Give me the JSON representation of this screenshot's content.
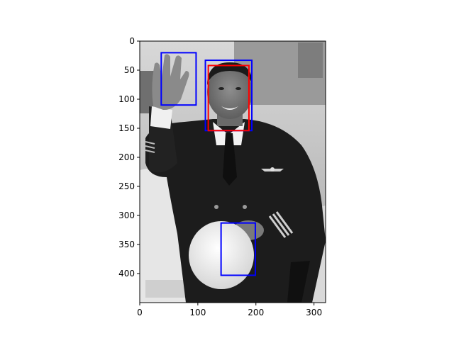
{
  "figure": {
    "image": {
      "description_free": true,
      "x_range": [
        0,
        320
      ],
      "y_range": [
        450,
        0
      ]
    },
    "x_ticks": [
      {
        "value": 0,
        "label": "0"
      },
      {
        "value": 100,
        "label": "100"
      },
      {
        "value": 200,
        "label": "200"
      },
      {
        "value": 300,
        "label": "300"
      }
    ],
    "y_ticks": [
      {
        "value": 0,
        "label": "0"
      },
      {
        "value": 50,
        "label": "50"
      },
      {
        "value": 100,
        "label": "100"
      },
      {
        "value": 150,
        "label": "150"
      },
      {
        "value": 200,
        "label": "200"
      },
      {
        "value": 250,
        "label": "250"
      },
      {
        "value": 300,
        "label": "300"
      },
      {
        "value": 350,
        "label": "350"
      },
      {
        "value": 400,
        "label": "400"
      }
    ],
    "boxes": [
      {
        "name": "detection-box-hand",
        "color": "#0000ff",
        "x": [
          37,
          97
        ],
        "y": [
          20,
          110
        ]
      },
      {
        "name": "detection-box-face-blue",
        "color": "#0000ff",
        "x": [
          113,
          193
        ],
        "y": [
          33,
          154
        ]
      },
      {
        "name": "detection-box-face-red",
        "color": "#ff0000",
        "x": [
          118,
          188
        ],
        "y": [
          42,
          154
        ]
      },
      {
        "name": "detection-box-hat",
        "color": "#0000ff",
        "x": [
          140,
          199
        ],
        "y": [
          313,
          403
        ]
      }
    ]
  }
}
